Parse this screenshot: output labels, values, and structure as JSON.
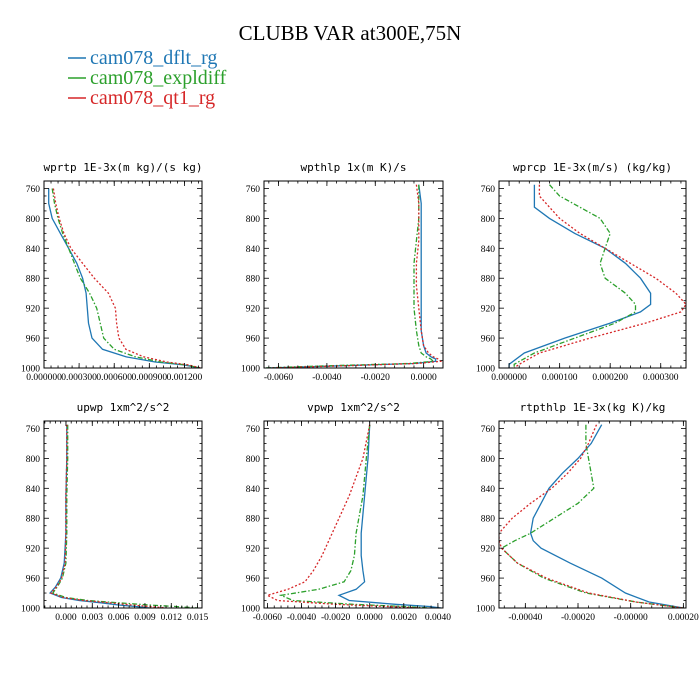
{
  "figure": {
    "title": "CLUBB VAR at300E,75N",
    "legend": [
      {
        "label": "cam078_dflt_rg",
        "color": "#1f77b4",
        "dash": "solid"
      },
      {
        "label": "cam078_expldiff",
        "color": "#2ca02c",
        "dash": "dashdot"
      },
      {
        "label": "cam078_qt1_rg",
        "color": "#d62728",
        "dash": "dotted"
      }
    ]
  },
  "chart_data": [
    {
      "type": "line",
      "title": "wprtp  1E-3x(m kg)/(s kg)",
      "xlim": [
        0.0,
        0.00135
      ],
      "ylim": [
        1000,
        750
      ],
      "xticks": [
        0.0,
        0.0003,
        0.0006,
        0.0009,
        0.0012
      ],
      "xtick_labels": [
        "0.000000",
        "0.000300",
        "0.000600",
        "0.000900",
        "0.001200"
      ],
      "yticks": [
        760,
        800,
        840,
        880,
        920,
        960,
        1000
      ],
      "y": [
        760,
        780,
        800,
        820,
        840,
        860,
        880,
        900,
        920,
        940,
        960,
        975,
        985,
        992,
        996,
        1000
      ],
      "series": [
        {
          "name": "cam078_dflt_rg",
          "x": [
            4e-05,
            4e-05,
            7e-05,
            0.00014,
            0.00021,
            0.00028,
            0.00033,
            0.00036,
            0.00037,
            0.00038,
            0.00041,
            0.0005,
            0.0007,
            0.00095,
            0.0012,
            0.00133
          ]
        },
        {
          "name": "cam078_expldiff",
          "x": [
            7e-05,
            9e-05,
            0.00012,
            0.00016,
            0.00021,
            0.00026,
            0.00031,
            0.00039,
            0.00045,
            0.00048,
            0.00051,
            0.0006,
            0.00078,
            0.001,
            0.00122,
            0.00133
          ]
        },
        {
          "name": "cam078_qt1_rg",
          "x": [
            8e-05,
            0.0001,
            0.00013,
            0.00017,
            0.00023,
            0.00033,
            0.00043,
            0.00055,
            0.00061,
            0.00062,
            0.00064,
            0.0007,
            0.00085,
            0.00105,
            0.00124,
            0.00134
          ]
        }
      ]
    },
    {
      "type": "line",
      "title": "wpthlp  1x(m K)/s",
      "xlim": [
        -0.0066,
        0.0008
      ],
      "ylim": [
        1000,
        750
      ],
      "xticks": [
        -0.006,
        -0.004,
        -0.002,
        0.0
      ],
      "xtick_labels": [
        "-0.0060",
        "-0.0040",
        "-0.0020",
        "0.0000"
      ],
      "yticks": [
        760,
        800,
        840,
        880,
        920,
        960,
        1000
      ],
      "y": [
        755,
        780,
        800,
        830,
        860,
        890,
        920,
        950,
        970,
        980,
        985,
        988,
        991,
        994,
        997,
        1000
      ],
      "series": [
        {
          "name": "cam078_dflt_rg",
          "x": [
            -0.0002,
            -0.0001,
            -0.0001,
            -0.0001,
            -0.0001,
            -0.0001,
            -0.0001,
            -0.0001,
            0.0,
            0.0001,
            0.0003,
            0.0005,
            0.0005,
            -0.0004,
            -0.0035,
            -0.0065
          ]
        },
        {
          "name": "cam078_expldiff",
          "x": [
            -0.0002,
            -0.0002,
            -0.0002,
            -0.0003,
            -0.0004,
            -0.0004,
            -0.0004,
            -0.0003,
            -0.0002,
            -0.0001,
            0.0001,
            0.0003,
            0.0004,
            -0.0006,
            -0.004,
            -0.0066
          ]
        },
        {
          "name": "cam078_qt1_rg",
          "x": [
            -0.0003,
            -0.0002,
            -0.0002,
            -0.0002,
            -0.0003,
            -0.0003,
            -0.0002,
            -0.0001,
            0.0,
            0.0002,
            0.0004,
            0.0006,
            0.0007,
            -0.0003,
            -0.0033,
            -0.0064
          ]
        }
      ]
    },
    {
      "type": "line",
      "title": "wprcp  1E-3x(m/s) (kg/kg)",
      "xlim": [
        -2e-05,
        0.00035
      ],
      "ylim": [
        1000,
        750
      ],
      "xticks": [
        0.0,
        0.0001,
        0.0002,
        0.0003
      ],
      "xtick_labels": [
        "0.000000",
        "0.000100",
        "0.000200",
        "0.000300"
      ],
      "yticks": [
        760,
        800,
        840,
        880,
        920,
        960,
        1000
      ],
      "y": [
        755,
        770,
        785,
        800,
        820,
        840,
        860,
        880,
        900,
        915,
        925,
        940,
        960,
        980,
        995,
        1000
      ],
      "series": [
        {
          "name": "cam078_dflt_rg",
          "x": [
            5e-05,
            5e-05,
            5e-05,
            8e-05,
            0.00013,
            0.00019,
            0.00023,
            0.00026,
            0.00028,
            0.00028,
            0.00026,
            0.0002,
            0.00011,
            3e-05,
            0.0,
            0.0
          ]
        },
        {
          "name": "cam078_expldiff",
          "x": [
            8e-05,
            0.0001,
            0.00014,
            0.00018,
            0.0002,
            0.00019,
            0.00018,
            0.00019,
            0.00023,
            0.00025,
            0.00025,
            0.00021,
            0.00013,
            5e-05,
            1e-05,
            1e-05
          ]
        },
        {
          "name": "cam078_qt1_rg",
          "x": [
            6e-05,
            6e-05,
            8e-05,
            0.0001,
            0.00014,
            0.00019,
            0.00024,
            0.00029,
            0.00033,
            0.00035,
            0.00034,
            0.00027,
            0.00016,
            6e-05,
            2e-05,
            1e-05
          ]
        }
      ]
    },
    {
      "type": "line",
      "title": "upwp  1xm^2/s^2",
      "xlim": [
        -0.0025,
        0.0155
      ],
      "ylim": [
        1000,
        750
      ],
      "xticks": [
        0.0,
        0.003,
        0.006,
        0.009,
        0.012,
        0.015
      ],
      "xtick_labels": [
        "0.000",
        "0.003",
        "0.006",
        "0.009",
        "0.012",
        "0.015"
      ],
      "yticks": [
        760,
        800,
        840,
        880,
        920,
        960,
        1000
      ],
      "y": [
        755,
        800,
        850,
        900,
        940,
        960,
        972,
        980,
        986,
        990,
        993,
        996,
        998,
        1000
      ],
      "series": [
        {
          "name": "cam078_dflt_rg",
          "x": [
            0.0001,
            0.0001,
            0.0,
            0.0,
            -0.0002,
            -0.0006,
            -0.0012,
            -0.0018,
            -0.0005,
            0.0015,
            0.004,
            0.006,
            0.008,
            0.0095
          ]
        },
        {
          "name": "cam078_expldiff",
          "x": [
            0.0002,
            0.0002,
            0.0001,
            0.0001,
            0.0,
            -0.0004,
            -0.001,
            -0.0015,
            0.0,
            0.0025,
            0.006,
            0.0095,
            0.0125,
            0.015
          ]
        },
        {
          "name": "cam078_qt1_rg",
          "x": [
            0.0001,
            0.0001,
            0.0,
            0.0,
            -0.0001,
            -0.0005,
            -0.0011,
            -0.0017,
            -0.0003,
            0.002,
            0.005,
            0.0075,
            0.0095,
            0.0115
          ]
        }
      ]
    },
    {
      "type": "line",
      "title": "vpwp  1xm^2/s^2",
      "xlim": [
        -0.0062,
        0.0043
      ],
      "ylim": [
        1000,
        750
      ],
      "xticks": [
        -0.006,
        -0.004,
        -0.002,
        0.0,
        0.002,
        0.004
      ],
      "xtick_labels": [
        "-0.0060",
        "-0.0040",
        "-0.0020",
        "0.0000",
        "0.0020",
        "0.0040"
      ],
      "yticks": [
        760,
        800,
        840,
        880,
        920,
        960,
        1000
      ],
      "y": [
        755,
        800,
        850,
        900,
        930,
        950,
        965,
        975,
        983,
        990,
        995,
        998,
        1000
      ],
      "series": [
        {
          "name": "cam078_dflt_rg",
          "x": [
            0.0,
            -0.0001,
            -0.0003,
            -0.0005,
            -0.0005,
            -0.0004,
            -0.0003,
            -0.0008,
            -0.0018,
            -0.0012,
            0.0015,
            0.0035,
            0.0042
          ]
        },
        {
          "name": "cam078_expldiff",
          "x": [
            0.0,
            -0.0002,
            -0.0004,
            -0.0008,
            -0.0009,
            -0.0011,
            -0.0015,
            -0.003,
            -0.0052,
            -0.0045,
            -0.001,
            0.002,
            0.0035
          ]
        },
        {
          "name": "cam078_qt1_rg",
          "x": [
            0.0,
            -0.0004,
            -0.0012,
            -0.0022,
            -0.0028,
            -0.0033,
            -0.0038,
            -0.0048,
            -0.006,
            -0.0054,
            -0.002,
            0.001,
            0.003
          ]
        }
      ]
    },
    {
      "type": "line",
      "title": "rtpthlp  1E-3x(kg K)/kg",
      "xlim": [
        -0.0005,
        0.00021
      ],
      "ylim": [
        1000,
        750
      ],
      "xticks": [
        -0.0004,
        -0.0002,
        0.0,
        0.0002
      ],
      "xtick_labels": [
        "-0.00040",
        "-0.00020",
        "-0.00000",
        "0.00020"
      ],
      "yticks": [
        760,
        800,
        840,
        880,
        920,
        960,
        1000
      ],
      "y": [
        755,
        780,
        800,
        820,
        840,
        860,
        880,
        900,
        910,
        920,
        940,
        960,
        980,
        992,
        1000
      ],
      "series": [
        {
          "name": "cam078_dflt_rg",
          "x": [
            -0.00011,
            -0.00015,
            -0.0002,
            -0.00026,
            -0.00031,
            -0.00034,
            -0.00037,
            -0.00038,
            -0.00037,
            -0.00034,
            -0.00023,
            -0.00011,
            -2e-05,
            7e-05,
            0.0002
          ]
        },
        {
          "name": "cam078_expldiff",
          "x": [
            -0.00017,
            -0.00017,
            -0.00016,
            -0.00015,
            -0.00014,
            -0.0002,
            -0.00029,
            -0.00038,
            -0.00044,
            -0.00049,
            -0.00043,
            -0.00033,
            -0.00017,
            2e-05,
            0.0002
          ]
        },
        {
          "name": "cam078_qt1_rg",
          "x": [
            -0.00013,
            -0.00016,
            -0.00019,
            -0.00024,
            -0.0003,
            -0.00038,
            -0.00045,
            -0.0005,
            -0.0005,
            -0.00049,
            -0.00043,
            -0.00032,
            -0.00016,
            2e-05,
            0.0002
          ]
        }
      ]
    }
  ]
}
